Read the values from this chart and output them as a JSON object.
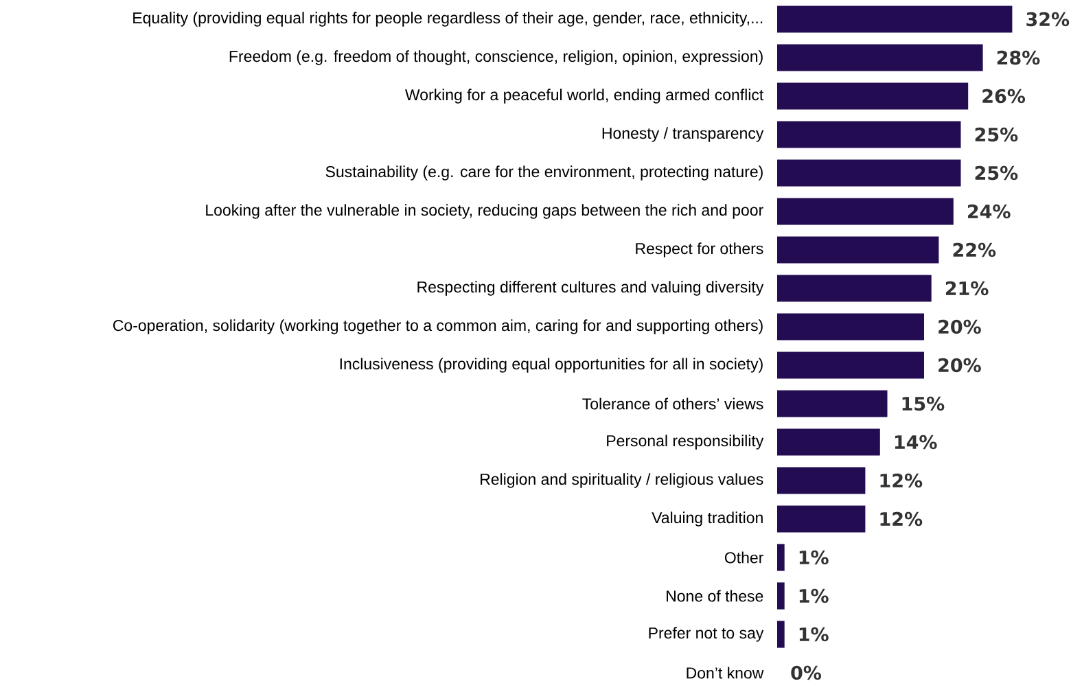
{
  "chart_data": {
    "type": "bar",
    "orientation": "horizontal",
    "color": "#230c52",
    "categories": [
      "Equality (providing equal rights for people regardless of their age, gender, race, ethnicity,...",
      "Freedom (e.g. freedom of thought, conscience, religion, opinion, expression)",
      "Working for a peaceful world, ending armed conflict",
      "Honesty / transparency",
      "Sustainability (e.g. care for the environment, protecting nature)",
      "Looking after the vulnerable in society, reducing gaps between the rich and poor",
      "Respect for others",
      "Respecting different cultures and valuing diversity",
      "Co-operation, solidarity (working together to a common aim, caring for and supporting others)",
      "Inclusiveness (providing equal opportunities for all in society)",
      "Tolerance of others’ views",
      "Personal responsibility",
      "Religion and spirituality / religious values",
      "Valuing tradition",
      "Other",
      "None of these",
      "Prefer not to say",
      "Don’t know"
    ],
    "values": [
      32,
      28,
      26,
      25,
      25,
      24,
      22,
      21,
      20,
      20,
      15,
      14,
      12,
      12,
      1,
      1,
      1,
      0
    ],
    "value_labels": [
      "32%",
      "28%",
      "26%",
      "25%",
      "25%",
      "24%",
      "22%",
      "21%",
      "20%",
      "20%",
      "15%",
      "14%",
      "12%",
      "12%",
      "1%",
      "1%",
      "1%",
      "0%"
    ]
  }
}
